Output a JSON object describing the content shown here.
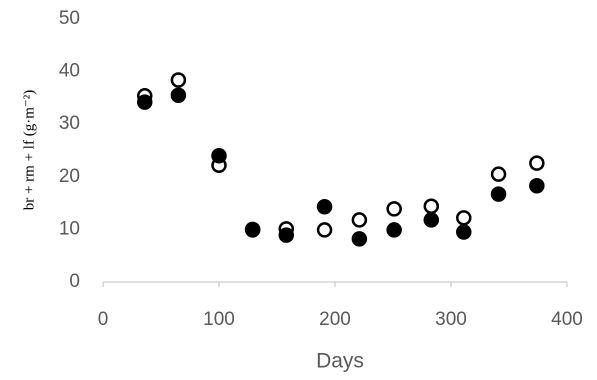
{
  "chart_data": {
    "type": "scatter",
    "x_label": "Days",
    "y_label": "br + rm + lf  (g·m⁻²)",
    "x": [
      36,
      65,
      100,
      129,
      158,
      191,
      221,
      251,
      283,
      311,
      341,
      374
    ],
    "series": [
      {
        "color": "#000000",
        "fill": "none",
        "values": [
          35.4,
          38.4,
          22.2,
          10.0,
          10.1,
          9.9,
          11.8,
          13.9,
          14.4,
          12.2,
          20.5,
          22.6
        ]
      },
      {
        "color": "#000000",
        "fill": "filled",
        "values": [
          34.2,
          35.5,
          24.0,
          9.9,
          8.9,
          14.3,
          8.2,
          9.9,
          11.8,
          9.5,
          16.7,
          18.3
        ]
      }
    ],
    "xlim": [
      0,
      400
    ],
    "xticks": [
      0,
      100,
      200,
      300,
      400
    ],
    "ylim": [
      0,
      50
    ],
    "yticks": [
      0,
      10,
      20,
      30,
      40,
      50
    ],
    "grid": false
  }
}
